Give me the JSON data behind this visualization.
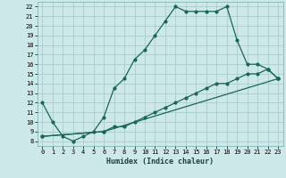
{
  "xlabel": "Humidex (Indice chaleur)",
  "background_color": "#cde8e8",
  "grid_color": "#a8cccc",
  "line_color": "#1a6655",
  "xlim": [
    -0.5,
    23.5
  ],
  "ylim": [
    7.5,
    22.5
  ],
  "xticks": [
    0,
    1,
    2,
    3,
    4,
    5,
    6,
    7,
    8,
    9,
    10,
    11,
    12,
    13,
    14,
    15,
    16,
    17,
    18,
    19,
    20,
    21,
    22,
    23
  ],
  "yticks": [
    8,
    9,
    10,
    11,
    12,
    13,
    14,
    15,
    16,
    17,
    18,
    19,
    20,
    21,
    22
  ],
  "series1_x": [
    0,
    1,
    2,
    3,
    4,
    5,
    6,
    7,
    8,
    9,
    10,
    11,
    12,
    13,
    14,
    15,
    16,
    17,
    18,
    19,
    20,
    21,
    22,
    23
  ],
  "series1_y": [
    12,
    10,
    8.5,
    8,
    8.5,
    9,
    10.5,
    13.5,
    14.5,
    16.5,
    17.5,
    19,
    20.5,
    22,
    21.5,
    21.5,
    21.5,
    21.5,
    22,
    18.5,
    16,
    16,
    15.5,
    14.5
  ],
  "series2_x": [
    0,
    6,
    7,
    8,
    9,
    10,
    11,
    12,
    13,
    14,
    15,
    16,
    17,
    18,
    19,
    20,
    21,
    22,
    23
  ],
  "series2_y": [
    8.5,
    9,
    9.5,
    9.5,
    10,
    10.5,
    11,
    11.5,
    12,
    12.5,
    13,
    13.5,
    14,
    14,
    14.5,
    15,
    15,
    15.5,
    14.5
  ],
  "series3_x": [
    0,
    6,
    23
  ],
  "series3_y": [
    8.5,
    9,
    14.5
  ]
}
